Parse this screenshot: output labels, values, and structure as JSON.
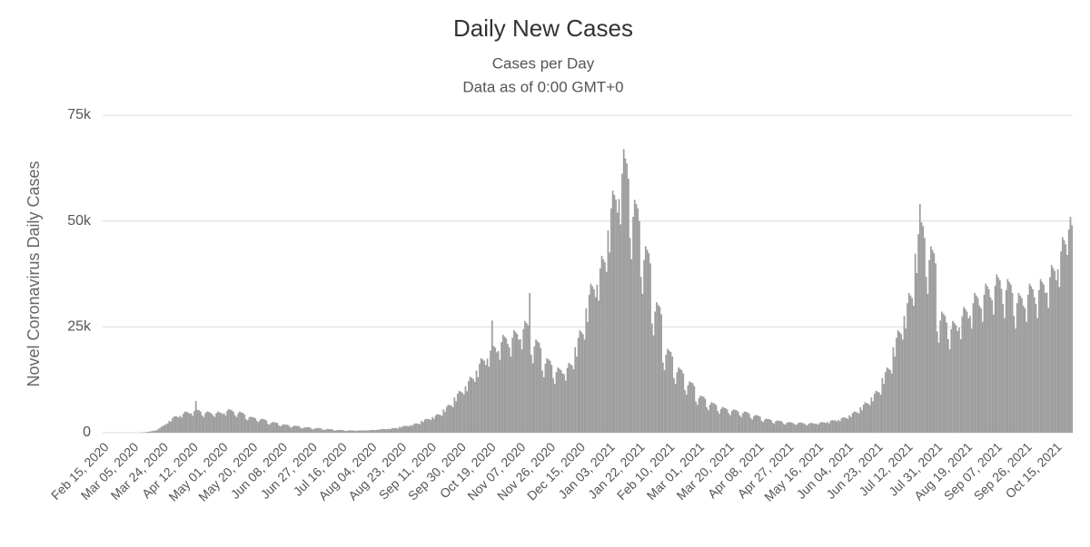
{
  "chart_data": {
    "type": "bar",
    "title": "Daily New Cases",
    "subtitle": [
      "Cases per Day",
      "Data as of 0:00 GMT+0"
    ],
    "y_label": "Novel Coronavirus Daily Cases",
    "color": "#9e9e9e",
    "grid": true,
    "ylim": [
      0,
      75000
    ],
    "yticks": [
      0,
      {
        "value": 25000,
        "label": "25k"
      },
      {
        "value": 50000,
        "label": "50k"
      },
      {
        "value": 75000,
        "label": "75k"
      }
    ],
    "categories": [
      "Feb 15, 2020",
      null,
      null,
      null,
      null,
      null,
      null,
      null,
      null,
      null,
      null,
      null,
      null,
      null,
      null,
      null,
      null,
      null,
      null,
      "Mar 05, 2020",
      null,
      null,
      null,
      null,
      null,
      null,
      null,
      null,
      null,
      null,
      null,
      null,
      null,
      null,
      null,
      null,
      null,
      null,
      "Mar 24, 2020",
      null,
      null,
      null,
      null,
      null,
      null,
      null,
      null,
      null,
      null,
      null,
      null,
      null,
      null,
      null,
      null,
      null,
      null,
      "Apr 12, 2020",
      null,
      null,
      null,
      null,
      null,
      null,
      null,
      null,
      null,
      null,
      null,
      null,
      null,
      null,
      null,
      null,
      null,
      null,
      "May 01, 2020",
      null,
      null,
      null,
      null,
      null,
      null,
      null,
      null,
      null,
      null,
      null,
      null,
      null,
      null,
      null,
      null,
      null,
      null,
      "May 20, 2020",
      null,
      null,
      null,
      null,
      null,
      null,
      null,
      null,
      null,
      null,
      null,
      null,
      null,
      null,
      null,
      null,
      null,
      null,
      "Jun 08, 2020",
      null,
      null,
      null,
      null,
      null,
      null,
      null,
      null,
      null,
      null,
      null,
      null,
      null,
      null,
      null,
      null,
      null,
      null,
      "Jun 27, 2020",
      null,
      null,
      null,
      null,
      null,
      null,
      null,
      null,
      null,
      null,
      null,
      null,
      null,
      null,
      null,
      null,
      null,
      null,
      "Jul 16, 2020",
      null,
      null,
      null,
      null,
      null,
      null,
      null,
      null,
      null,
      null,
      null,
      null,
      null,
      null,
      null,
      null,
      null,
      null,
      "Aug 04, 2020",
      null,
      null,
      null,
      null,
      null,
      null,
      null,
      null,
      null,
      null,
      null,
      null,
      null,
      null,
      null,
      null,
      null,
      null,
      "Aug 23, 2020",
      null,
      null,
      null,
      null,
      null,
      null,
      null,
      null,
      null,
      null,
      null,
      null,
      null,
      null,
      null,
      null,
      null,
      null,
      "Sep 11, 2020",
      null,
      null,
      null,
      null,
      null,
      null,
      null,
      null,
      null,
      null,
      null,
      null,
      null,
      null,
      null,
      null,
      null,
      null,
      "Sep 30, 2020",
      null,
      null,
      null,
      null,
      null,
      null,
      null,
      null,
      null,
      null,
      null,
      null,
      null,
      null,
      null,
      null,
      null,
      null,
      "Oct 19, 2020",
      null,
      null,
      null,
      null,
      null,
      null,
      null,
      null,
      null,
      null,
      null,
      null,
      null,
      null,
      null,
      null,
      null,
      null,
      "Nov 07, 2020",
      null,
      null,
      null,
      null,
      null,
      null,
      null,
      null,
      null,
      null,
      null,
      null,
      null,
      null,
      null,
      null,
      null,
      null,
      "Nov 26, 2020",
      null,
      null,
      null,
      null,
      null,
      null,
      null,
      null,
      null,
      null,
      null,
      null,
      null,
      null,
      null,
      null,
      null,
      null,
      "Dec 15, 2020",
      null,
      null,
      null,
      null,
      null,
      null,
      null,
      null,
      null,
      null,
      null,
      null,
      null,
      null,
      null,
      null,
      null,
      null,
      "Jan 03, 2021",
      null,
      null,
      null,
      null,
      null,
      null,
      null,
      null,
      null,
      null,
      null,
      null,
      null,
      null,
      null,
      null,
      null,
      null,
      "Jan 22, 2021",
      null,
      null,
      null,
      null,
      null,
      null,
      null,
      null,
      null,
      null,
      null,
      null,
      null,
      null,
      null,
      null,
      null,
      null,
      "Feb 10, 2021",
      null,
      null,
      null,
      null,
      null,
      null,
      null,
      null,
      null,
      null,
      null,
      null,
      null,
      null,
      null,
      null,
      null,
      null,
      "Mar 01, 2021",
      null,
      null,
      null,
      null,
      null,
      null,
      null,
      null,
      null,
      null,
      null,
      null,
      null,
      null,
      null,
      null,
      null,
      null,
      "Mar 20, 2021",
      null,
      null,
      null,
      null,
      null,
      null,
      null,
      null,
      null,
      null,
      null,
      null,
      null,
      null,
      null,
      null,
      null,
      null,
      "Apr 08, 2021",
      null,
      null,
      null,
      null,
      null,
      null,
      null,
      null,
      null,
      null,
      null,
      null,
      null,
      null,
      null,
      null,
      null,
      null,
      "Apr 27, 2021",
      null,
      null,
      null,
      null,
      null,
      null,
      null,
      null,
      null,
      null,
      null,
      null,
      null,
      null,
      null,
      null,
      null,
      null,
      "May 16, 2021",
      null,
      null,
      null,
      null,
      null,
      null,
      null,
      null,
      null,
      null,
      null,
      null,
      null,
      null,
      null,
      null,
      null,
      null,
      "Jun 04, 2021",
      null,
      null,
      null,
      null,
      null,
      null,
      null,
      null,
      null,
      null,
      null,
      null,
      null,
      null,
      null,
      null,
      null,
      null,
      "Jun 23, 2021",
      null,
      null,
      null,
      null,
      null,
      null,
      null,
      null,
      null,
      null,
      null,
      null,
      null,
      null,
      null,
      null,
      null,
      null,
      "Jul 12, 2021",
      null,
      null,
      null,
      null,
      null,
      null,
      null,
      null,
      null,
      null,
      null,
      null,
      null,
      null,
      null,
      null,
      null,
      null,
      "Jul 31, 2021",
      null,
      null,
      null,
      null,
      null,
      null,
      null,
      null,
      null,
      null,
      null,
      null,
      null,
      null,
      null,
      null,
      null,
      null,
      "Aug 19, 2021",
      null,
      null,
      null,
      null,
      null,
      null,
      null,
      null,
      null,
      null,
      null,
      null,
      null,
      null,
      null,
      null,
      null,
      null,
      "Sep 07, 2021",
      null,
      null,
      null,
      null,
      null,
      null,
      null,
      null,
      null,
      null,
      null,
      null,
      null,
      null,
      null,
      null,
      null,
      null,
      "Sep 26, 2021",
      null,
      null,
      null,
      null,
      null,
      null,
      null,
      null,
      null,
      null,
      null,
      null,
      null,
      null,
      null,
      null,
      null,
      null,
      "Oct 15, 2021",
      null,
      null,
      null,
      null,
      null,
      null,
      null,
      null,
      null,
      null
    ],
    "values": [
      0,
      0,
      0,
      0,
      0,
      0,
      0,
      0,
      0,
      0,
      0,
      0,
      0,
      0,
      0,
      0,
      0,
      0,
      0,
      0,
      0,
      0,
      0,
      0,
      50,
      80,
      100,
      120,
      200,
      250,
      300,
      380,
      450,
      500,
      550,
      900,
      1100,
      1400,
      1600,
      1800,
      2000,
      2200,
      2800,
      2600,
      3400,
      3800,
      3900,
      3800,
      3600,
      4000,
      3600,
      4500,
      5000,
      4900,
      4800,
      4500,
      4600,
      4000,
      5100,
      7500,
      5400,
      5300,
      5000,
      4100,
      3700,
      4600,
      5000,
      4900,
      4800,
      4500,
      4100,
      3700,
      4600,
      5000,
      4800,
      4700,
      4400,
      4600,
      4100,
      5200,
      5600,
      5400,
      5300,
      4900,
      4100,
      3700,
      4600,
      5000,
      4800,
      4700,
      4300,
      3200,
      2900,
      3600,
      3800,
      3700,
      3600,
      3400,
      2800,
      2500,
      3100,
      3300,
      3200,
      3100,
      2900,
      2100,
      1900,
      2300,
      2500,
      2500,
      2400,
      2300,
      1700,
      1500,
      1800,
      2000,
      1900,
      1900,
      1800,
      1400,
      1200,
      1500,
      1700,
      1600,
      1600,
      1500,
      1100,
      1000,
      1200,
      1300,
      1300,
      1300,
      1200,
      900,
      800,
      1000,
      1100,
      1100,
      1100,
      1000,
      700,
      650,
      800,
      900,
      850,
      850,
      800,
      550,
      500,
      600,
      650,
      650,
      650,
      600,
      450,
      400,
      500,
      550,
      550,
      550,
      500,
      460,
      410,
      520,
      560,
      540,
      530,
      500,
      550,
      500,
      610,
      660,
      650,
      640,
      600,
      740,
      660,
      820,
      880,
      860,
      850,
      800,
      920,
      820,
      1020,
      1100,
      1080,
      1060,
      1000,
      1400,
      1200,
      1500,
      1650,
      1600,
      1600,
      1500,
      1800,
      1600,
      2000,
      2200,
      2200,
      2100,
      2000,
      2800,
      2500,
      3100,
      3300,
      3200,
      3200,
      3000,
      3700,
      3300,
      4100,
      4400,
      4300,
      4200,
      4000,
      5500,
      4900,
      6100,
      6600,
      6500,
      6400,
      6000,
      8300,
      7400,
      9200,
      9900,
      9700,
      9500,
      9000,
      11000,
      9800,
      12200,
      13200,
      13000,
      12700,
      12000,
      14700,
      13100,
      16300,
      17600,
      17300,
      17000,
      16000,
      17500,
      15600,
      19400,
      26500,
      20500,
      20100,
      19000,
      19300,
      17200,
      21400,
      23100,
      22700,
      22300,
      21000,
      20200,
      18000,
      22400,
      24200,
      23800,
      23300,
      22000,
      22100,
      19700,
      24500,
      26400,
      25900,
      25400,
      33000,
      18400,
      16400,
      20400,
      22000,
      21600,
      21200,
      20000,
      14700,
      13100,
      16300,
      17600,
      17300,
      17000,
      16000,
      12900,
      11500,
      14300,
      15400,
      15100,
      14800,
      14000,
      13800,
      12300,
      15300,
      16500,
      16200,
      15900,
      15000,
      20200,
      18000,
      22400,
      24200,
      23800,
      23300,
      22000,
      29400,
      26200,
      32600,
      35200,
      34600,
      33900,
      32000,
      35000,
      31200,
      38800,
      41800,
      41000,
      40300,
      38000,
      47800,
      42600,
      53000,
      57200,
      56200,
      55100,
      52000,
      55200,
      49200,
      61200,
      67000,
      64800,
      63600,
      60000,
      46000,
      41000,
      51000,
      55000,
      54000,
      53000,
      50000,
      36800,
      32800,
      40800,
      44000,
      43200,
      42400,
      40000,
      25800,
      23000,
      28600,
      30800,
      30200,
      29700,
      28000,
      16600,
      14800,
      18400,
      19800,
      19400,
      19100,
      18000,
      12900,
      11500,
      14300,
      15400,
      15100,
      14800,
      14000,
      10100,
      9000,
      11200,
      12100,
      11900,
      11700,
      11000,
      7400,
      6600,
      8200,
      8800,
      8600,
      8500,
      8000,
      6000,
      5300,
      6600,
      7200,
      7000,
      6900,
      6500,
      5100,
      4500,
      5600,
      6100,
      5900,
      5800,
      5500,
      4600,
      4100,
      5100,
      5500,
      5400,
      5300,
      5000,
      4100,
      3700,
      4600,
      5000,
      4900,
      4800,
      4500,
      3500,
      3100,
      3900,
      4200,
      4100,
      4000,
      3800,
      2800,
      2500,
      3100,
      3300,
      3200,
      3200,
      3000,
      2400,
      2100,
      2700,
      2900,
      2800,
      2800,
      2600,
      2100,
      1900,
      2300,
      2500,
      2500,
      2400,
      2300,
      2000,
      1800,
      2200,
      2400,
      2400,
      2300,
      2200,
      1900,
      1700,
      2100,
      2300,
      2300,
      2200,
      2100,
      2100,
      1900,
      2300,
      2500,
      2500,
      2400,
      2300,
      2500,
      2200,
      2800,
      3000,
      2900,
      2900,
      2700,
      3000,
      2700,
      3400,
      3600,
      3600,
      3500,
      3300,
      4100,
      3700,
      4600,
      5000,
      4900,
      4800,
      4500,
      6000,
      5300,
      6600,
      7200,
      7000,
      6900,
      6500,
      8300,
      7400,
      9200,
      9900,
      9700,
      9500,
      9000,
      12900,
      11500,
      14300,
      15400,
      15100,
      14800,
      14000,
      20200,
      18000,
      22400,
      24200,
      23800,
      23300,
      22000,
      27600,
      24600,
      30600,
      33000,
      32400,
      31800,
      30000,
      42300,
      37700,
      46900,
      54000,
      49700,
      48800,
      46000,
      36800,
      32800,
      40800,
      44000,
      43200,
      42400,
      40000,
      23900,
      21300,
      26500,
      28600,
      28100,
      27600,
      26000,
      22100,
      19700,
      24500,
      26400,
      25900,
      25400,
      24000,
      24800,
      22100,
      27500,
      29700,
      29200,
      28600,
      27000,
      27600,
      24600,
      30600,
      33000,
      32400,
      31800,
      30000,
      29400,
      26200,
      32600,
      35200,
      34600,
      33900,
      32000,
      31300,
      27900,
      34700,
      37400,
      36700,
      36000,
      34000,
      30400,
      27100,
      33700,
      36300,
      35600,
      35000,
      33000,
      27600,
      24600,
      30600,
      33000,
      32400,
      31800,
      30000,
      29400,
      26200,
      32600,
      35200,
      34600,
      33900,
      32000,
      30400,
      27100,
      33700,
      36300,
      35600,
      35000,
      33000,
      33100,
      29500,
      36700,
      39600,
      38900,
      38200,
      36000,
      38600,
      34400,
      42800,
      46200,
      45400,
      44500,
      42000,
      48000,
      51000,
      49000
    ]
  }
}
